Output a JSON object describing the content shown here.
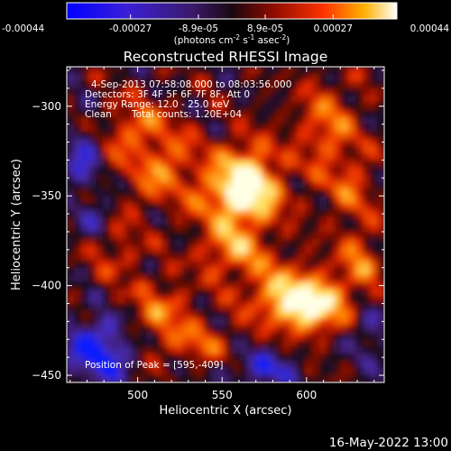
{
  "chart_data": {
    "type": "heatmap",
    "title": "Reconstructed RHESSI Image",
    "xlabel": "Heliocentric X (arcsec)",
    "ylabel": "Heliocentric Y (arcsec)",
    "xlim": [
      458,
      646
    ],
    "ylim": [
      -454,
      -278
    ],
    "x_ticks": [
      "500",
      "550",
      "600"
    ],
    "x_tick_values": [
      500,
      550,
      600
    ],
    "y_ticks": [
      "-300",
      "-350",
      "-400",
      "-450"
    ],
    "y_tick_values": [
      -300,
      -350,
      -400,
      -450
    ],
    "colorbar": {
      "range": [
        -0.00044,
        0.00044
      ],
      "tick_labels": [
        "-0.00044",
        "-0.00027",
        "-8.9e-05",
        "8.9e-05",
        "0.00027",
        "0.00044"
      ],
      "tick_values": [
        -0.00044,
        -0.00027,
        -8.9e-05,
        8.9e-05,
        0.00027,
        0.00044
      ],
      "unit_prefix": "(photons cm",
      "unit_exp1": "-2",
      "unit_mid": " s",
      "unit_exp2": "-1",
      "unit_mid2": " asec",
      "unit_exp3": "-2",
      "unit_suffix": ")"
    },
    "annotations": {
      "line1": "4-Sep-2013 07:58:08.000 to 08:03:56.000",
      "line2": "Detectors: 3F 4F 5F 6F 7F 8F, Att 0",
      "line3": "Energy Range: 12.0 - 25.0 keV",
      "line4_a": "Clean",
      "line4_b": "Total counts: 1.20E+04",
      "peak": "Position of Peak = [595,-409]"
    },
    "colors": {
      "low": "#0a1aff",
      "mid": "#22143c",
      "high": "#ff4a00",
      "top": "#ffffe0"
    }
  },
  "footer": {
    "timestamp": "16-May-2022 13:00"
  }
}
